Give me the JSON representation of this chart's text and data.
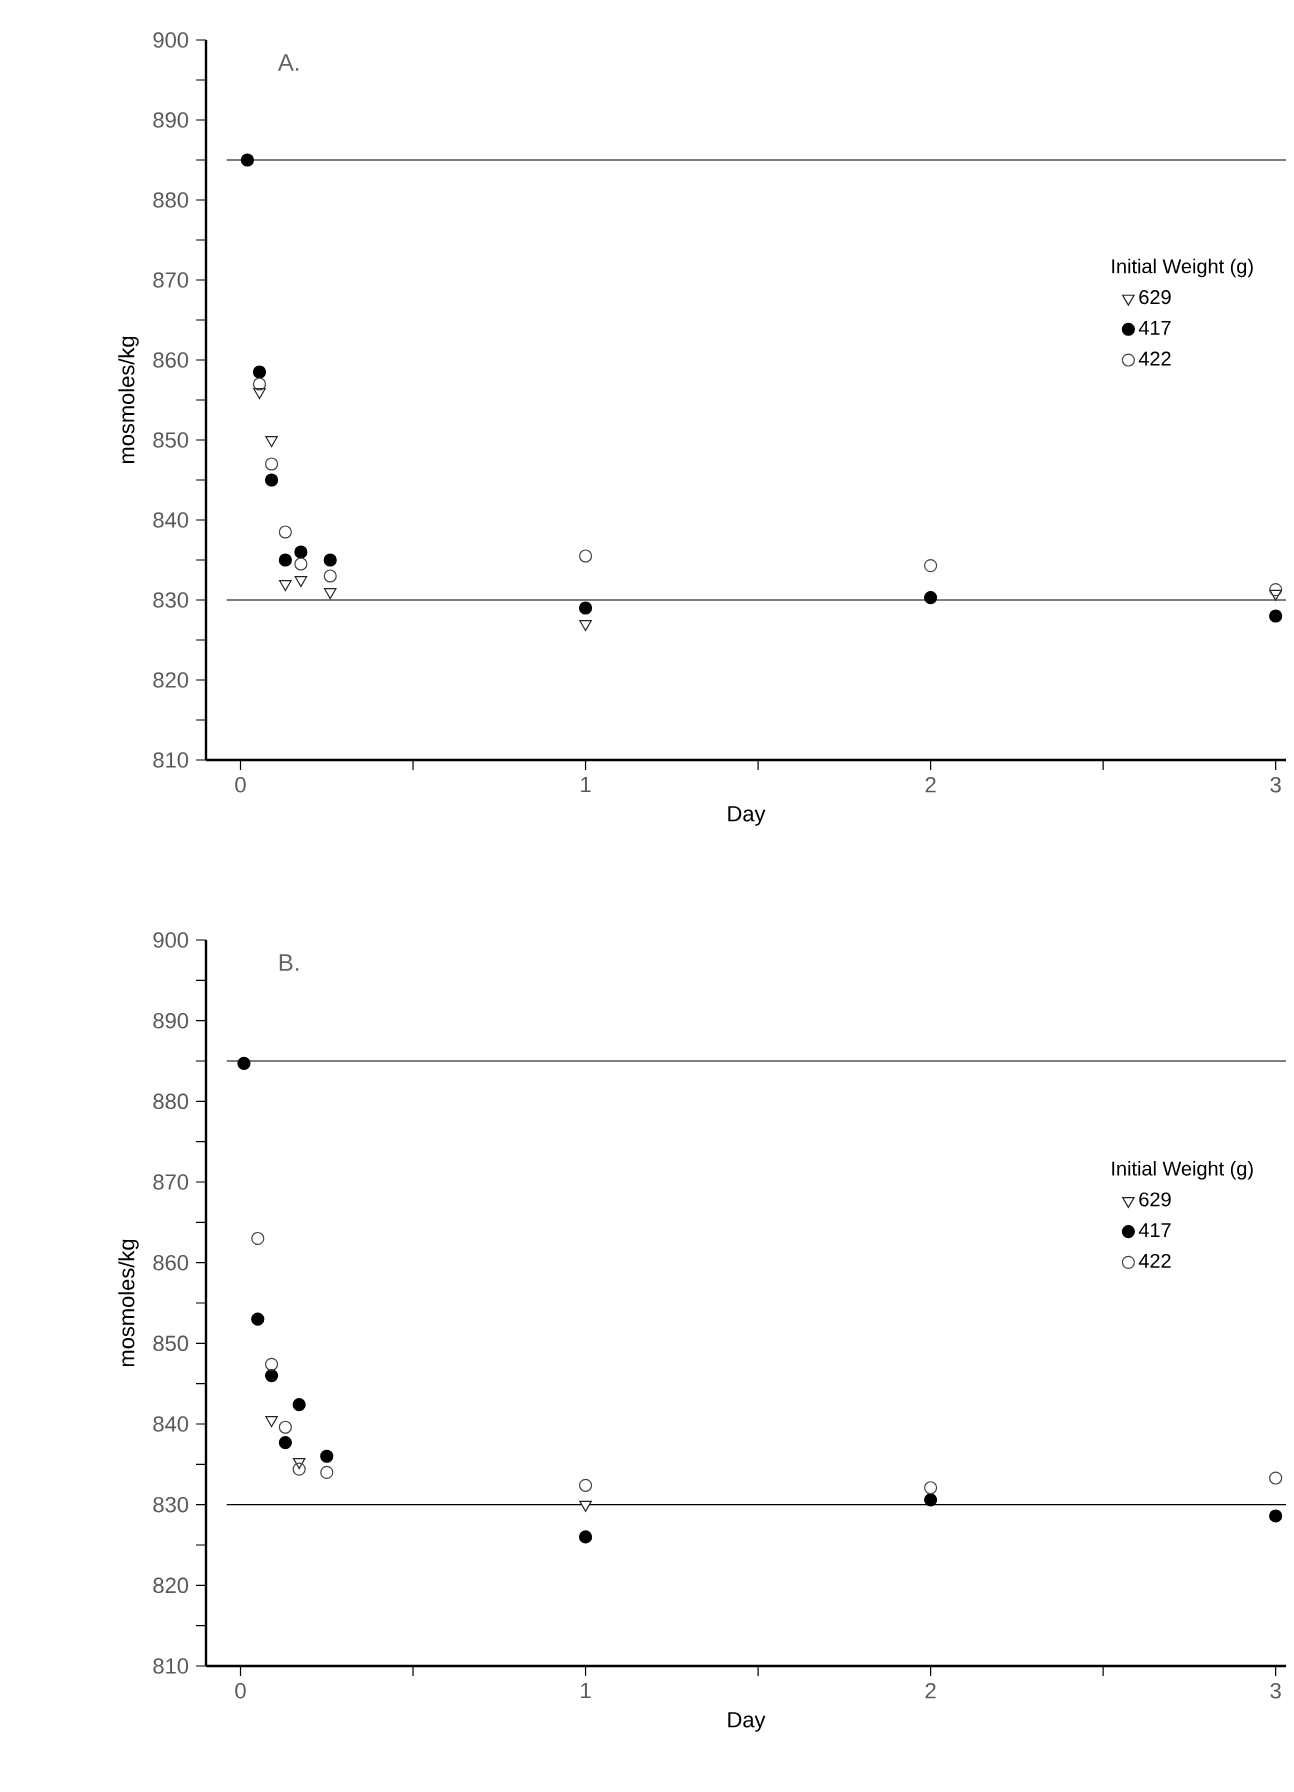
{
  "chart_data": [
    {
      "type": "scatter",
      "title": "A.",
      "xlabel": "Day",
      "ylabel": "mosmoles/kg",
      "legend_title": "Initial Weight (g)",
      "legend": "right",
      "grid": false,
      "xlim": [
        -0.1,
        3.03
      ],
      "ylim": [
        810,
        900
      ],
      "xticks": [
        0,
        {
          "value": 0.5,
          "label": null
        },
        1,
        {
          "value": 1.5,
          "label": null
        },
        2,
        {
          "value": 2.5,
          "label": null
        },
        3
      ],
      "yticks": [
        810,
        {
          "value": 815,
          "label": null
        },
        820,
        {
          "value": 825,
          "label": null
        },
        830,
        {
          "value": 835,
          "label": null
        },
        840,
        {
          "value": 845,
          "label": null
        },
        850,
        {
          "value": 855,
          "label": null
        },
        860,
        {
          "value": 865,
          "label": null
        },
        870,
        {
          "value": 875,
          "label": null
        },
        880,
        {
          "value": 885,
          "label": null
        },
        890,
        {
          "value": 895,
          "label": null
        },
        900
      ],
      "x": [
        0.02,
        0.055,
        0.09,
        0.13,
        0.175,
        0.26,
        1,
        2,
        3
      ],
      "ref_lines": [
        {
          "axis": "y",
          "value": 885,
          "color": "#000000"
        },
        {
          "axis": "y",
          "value": 830,
          "color": "#000000"
        }
      ],
      "series": [
        {
          "name": "629",
          "color": "#222222",
          "marker": "triangle",
          "values": [
            null,
            856,
            850,
            832,
            832.5,
            831,
            827,
            null,
            830.8
          ]
        },
        {
          "name": "417",
          "color": "#000000",
          "marker": "circle",
          "values": [
            885,
            858.5,
            845,
            835,
            836,
            835,
            829,
            830.3,
            828
          ]
        },
        {
          "name": "422",
          "color": "#444444",
          "marker": "circle",
          "values": [
            null,
            857,
            847,
            838.5,
            834.5,
            833,
            835.5,
            834.3,
            831.3
          ]
        }
      ]
    },
    {
      "type": "scatter",
      "title": "B.",
      "xlabel": "Day",
      "ylabel": "mosmoles/kg",
      "legend_title": "Initial Weight (g)",
      "legend": "right",
      "grid": false,
      "xlim": [
        -0.1,
        3.03
      ],
      "ylim": [
        810,
        900
      ],
      "xticks": [
        0,
        {
          "value": 0.5,
          "label": null
        },
        1,
        {
          "value": 1.5,
          "label": null
        },
        2,
        {
          "value": 2.5,
          "label": null
        },
        3
      ],
      "yticks": [
        810,
        {
          "value": 815,
          "label": null
        },
        820,
        {
          "value": 825,
          "label": null
        },
        830,
        {
          "value": 835,
          "label": null
        },
        840,
        {
          "value": 845,
          "label": null
        },
        850,
        {
          "value": 855,
          "label": null
        },
        860,
        {
          "value": 865,
          "label": null
        },
        870,
        {
          "value": 875,
          "label": null
        },
        880,
        {
          "value": 885,
          "label": null
        },
        890,
        {
          "value": 895,
          "label": null
        },
        900
      ],
      "x": [
        0.01,
        0.05,
        0.09,
        0.13,
        0.17,
        0.25,
        1,
        2,
        3
      ],
      "ref_lines": [
        {
          "axis": "y",
          "value": 885,
          "color": "#000000"
        },
        {
          "axis": "y",
          "value": 830,
          "color": "#000000"
        }
      ],
      "series": [
        {
          "name": "629",
          "color": "#222222",
          "marker": "triangle",
          "values": [
            null,
            null,
            840.5,
            null,
            835.3,
            null,
            830,
            null,
            null
          ]
        },
        {
          "name": "417",
          "color": "#000000",
          "marker": "circle",
          "values": [
            884.7,
            853,
            846,
            837.7,
            842.4,
            836,
            826,
            830.6,
            828.6
          ]
        },
        {
          "name": "422",
          "color": "#444444",
          "marker": "circle",
          "values": [
            null,
            863,
            847.4,
            839.6,
            834.4,
            834,
            832.4,
            832.1,
            833.3
          ]
        }
      ]
    }
  ]
}
